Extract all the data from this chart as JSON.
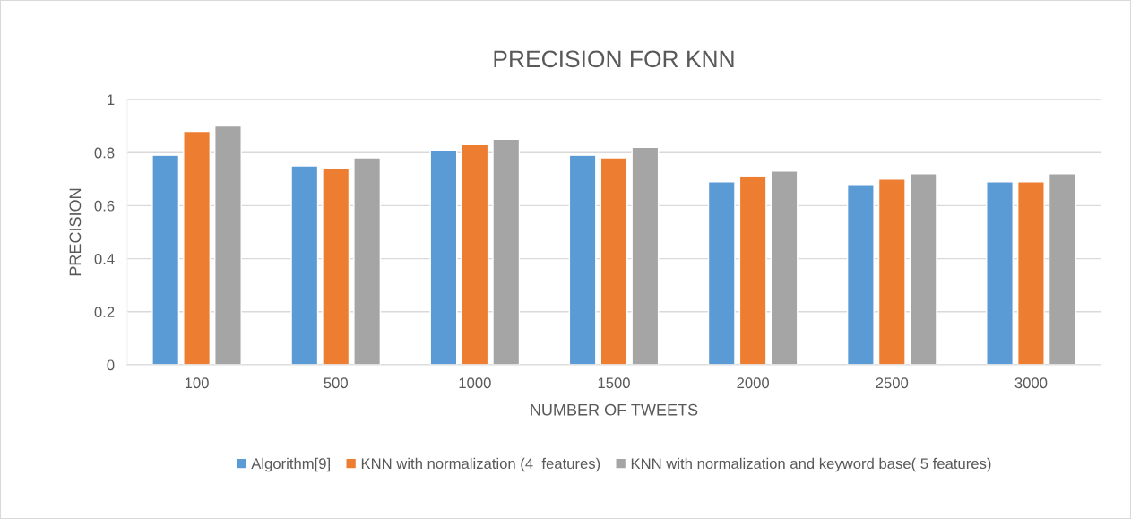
{
  "chart_data": {
    "type": "bar",
    "title": "PRECISION FOR KNN",
    "xlabel": "NUMBER OF TWEETS",
    "ylabel": "PRECISION",
    "categories": [
      "100",
      "500",
      "1000",
      "1500",
      "2000",
      "2500",
      "3000"
    ],
    "series": [
      {
        "name": "Algorithm[9]",
        "color": "#5b9bd5",
        "values": [
          0.79,
          0.75,
          0.81,
          0.79,
          0.69,
          0.68,
          0.69
        ]
      },
      {
        "name": "KNN with normalization (4  features)",
        "color": "#ed7d31",
        "values": [
          0.88,
          0.74,
          0.83,
          0.78,
          0.71,
          0.7,
          0.69
        ]
      },
      {
        "name": "KNN with normalization and keyword base( 5 features)",
        "color": "#a5a5a5",
        "values": [
          0.9,
          0.78,
          0.85,
          0.82,
          0.73,
          0.72,
          0.72
        ]
      }
    ],
    "ylim": [
      0,
      1
    ],
    "yticks": [
      0,
      0.2,
      0.4,
      0.6,
      0.8,
      1
    ],
    "grid": "y",
    "legend": "bottom"
  }
}
